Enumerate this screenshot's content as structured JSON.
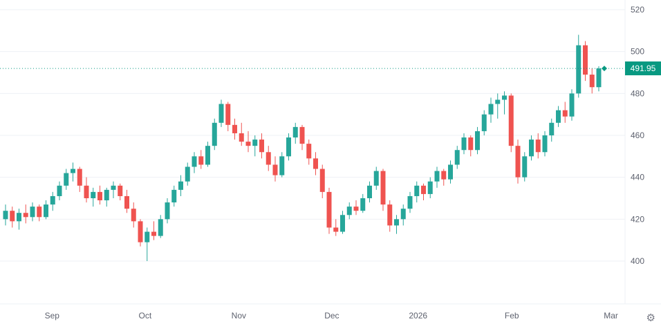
{
  "chart_data": {
    "type": "candlestick",
    "title": "",
    "last_price": "491.95",
    "y_axis": {
      "side": "right",
      "ticks": [
        520,
        500,
        480,
        460,
        440,
        420,
        400
      ]
    },
    "x_axis": {
      "labels": [
        {
          "label": "Sep",
          "index": 6.9
        },
        {
          "label": "Oct",
          "index": 20.7
        },
        {
          "label": "Nov",
          "index": 34.6
        },
        {
          "label": "Dec",
          "index": 48.4
        },
        {
          "label": "2026",
          "index": 61.2
        },
        {
          "label": "Feb",
          "index": 75.1
        },
        {
          "label": "Mar",
          "index": 89.8
        }
      ]
    },
    "grid": "horizontal",
    "legend": "none",
    "candles": [
      [
        420,
        427,
        417,
        424
      ],
      [
        424,
        426,
        416,
        419
      ],
      [
        419,
        425,
        415,
        423
      ],
      [
        423,
        427,
        418,
        421
      ],
      [
        421,
        428,
        419,
        426
      ],
      [
        426,
        427,
        419,
        421
      ],
      [
        421,
        429,
        420,
        427
      ],
      [
        427,
        433,
        424,
        431
      ],
      [
        431,
        438,
        429,
        436
      ],
      [
        436,
        444,
        434,
        442
      ],
      [
        442,
        447,
        438,
        444
      ],
      [
        444,
        445,
        433,
        436
      ],
      [
        436,
        440,
        428,
        430
      ],
      [
        430,
        435,
        426,
        433
      ],
      [
        433,
        436,
        427,
        429
      ],
      [
        429,
        435,
        426,
        434
      ],
      [
        434,
        438,
        430,
        436
      ],
      [
        436,
        437,
        429,
        431
      ],
      [
        431,
        434,
        423,
        425
      ],
      [
        425,
        428,
        416,
        419
      ],
      [
        419,
        420,
        407,
        409
      ],
      [
        409,
        416,
        400,
        414
      ],
      [
        414,
        419,
        410,
        412
      ],
      [
        412,
        422,
        411,
        420
      ],
      [
        420,
        430,
        418,
        428
      ],
      [
        428,
        436,
        426,
        434
      ],
      [
        434,
        441,
        431,
        438
      ],
      [
        438,
        447,
        436,
        445
      ],
      [
        445,
        452,
        442,
        450
      ],
      [
        450,
        453,
        444,
        446
      ],
      [
        446,
        457,
        445,
        455
      ],
      [
        455,
        468,
        453,
        466
      ],
      [
        466,
        477,
        464,
        475
      ],
      [
        475,
        476,
        462,
        465
      ],
      [
        465,
        468,
        458,
        461
      ],
      [
        461,
        466,
        455,
        457
      ],
      [
        457,
        462,
        452,
        455
      ],
      [
        455,
        460,
        450,
        458
      ],
      [
        458,
        461,
        449,
        452
      ],
      [
        452,
        455,
        443,
        446
      ],
      [
        446,
        450,
        438,
        441
      ],
      [
        441,
        452,
        440,
        450
      ],
      [
        450,
        461,
        448,
        459
      ],
      [
        459,
        466,
        456,
        464
      ],
      [
        464,
        465,
        453,
        456
      ],
      [
        456,
        458,
        446,
        449
      ],
      [
        449,
        452,
        441,
        444
      ],
      [
        444,
        446,
        430,
        433
      ],
      [
        433,
        435,
        413,
        416
      ],
      [
        416,
        420,
        412,
        414
      ],
      [
        414,
        424,
        413,
        422
      ],
      [
        422,
        428,
        420,
        426
      ],
      [
        426,
        429,
        422,
        424
      ],
      [
        424,
        432,
        423,
        430
      ],
      [
        430,
        438,
        428,
        436
      ],
      [
        436,
        445,
        434,
        443
      ],
      [
        443,
        444,
        424,
        427
      ],
      [
        427,
        429,
        414,
        417
      ],
      [
        417,
        422,
        413,
        420
      ],
      [
        420,
        427,
        417,
        425
      ],
      [
        425,
        433,
        423,
        431
      ],
      [
        431,
        438,
        428,
        436
      ],
      [
        436,
        437,
        429,
        432
      ],
      [
        432,
        440,
        430,
        438
      ],
      [
        438,
        445,
        435,
        443
      ],
      [
        443,
        444,
        436,
        439
      ],
      [
        439,
        448,
        437,
        446
      ],
      [
        446,
        455,
        444,
        453
      ],
      [
        453,
        461,
        451,
        459
      ],
      [
        459,
        460,
        450,
        453
      ],
      [
        453,
        464,
        451,
        462
      ],
      [
        462,
        472,
        460,
        470
      ],
      [
        470,
        478,
        466,
        475
      ],
      [
        475,
        480,
        468,
        477
      ],
      [
        477,
        481,
        470,
        479
      ],
      [
        479,
        480,
        452,
        455
      ],
      [
        455,
        458,
        437,
        440
      ],
      [
        440,
        452,
        438,
        450
      ],
      [
        450,
        460,
        448,
        458
      ],
      [
        458,
        461,
        449,
        452
      ],
      [
        452,
        462,
        450,
        460
      ],
      [
        460,
        468,
        457,
        466
      ],
      [
        466,
        474,
        464,
        472
      ],
      [
        472,
        476,
        466,
        469
      ],
      [
        469,
        482,
        467,
        480
      ],
      [
        480,
        508,
        478,
        503
      ],
      [
        503,
        505,
        486,
        489
      ],
      [
        489,
        492,
        480,
        483
      ],
      [
        483,
        493,
        481,
        491.95
      ]
    ],
    "colors": {
      "up": "#26a69a",
      "down": "#ef5350",
      "last_price": "#089981",
      "grid": "#eef0f4",
      "axis_text": "#5d616e"
    }
  },
  "controls": {
    "settings_glyph": "⚙"
  }
}
